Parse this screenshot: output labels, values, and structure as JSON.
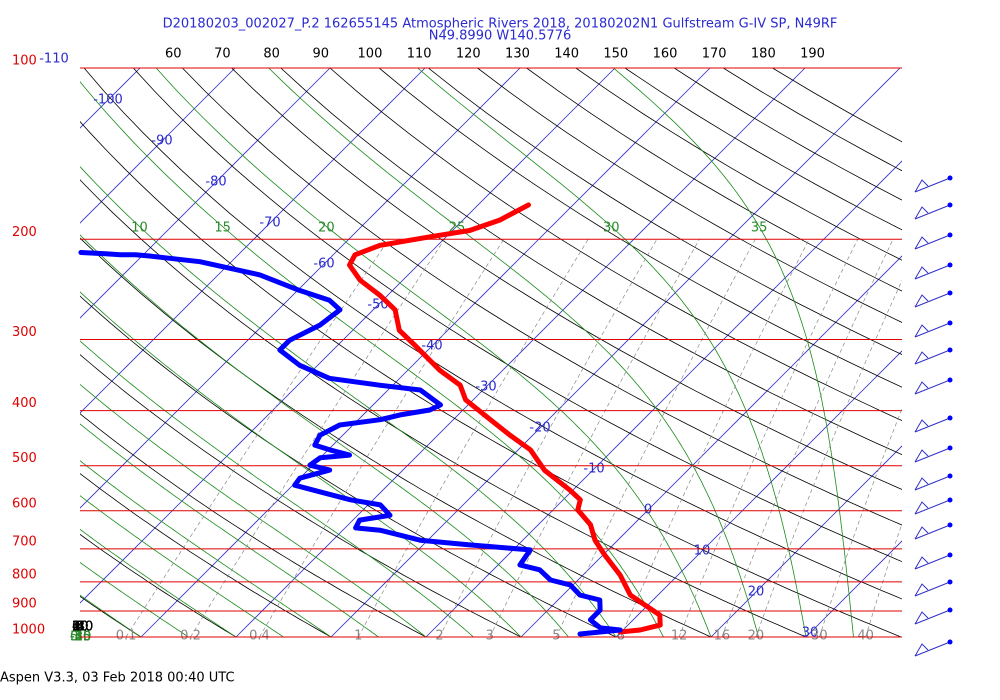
{
  "chart_data": {
    "type": "skewt",
    "title": "D20180203_002027_P.2 162655145 Atmospheric Rivers 2018, 20180202N1 Gulfstream G-IV SP, N49RF",
    "subtitle": "N49.8990 W140.5776",
    "footer": "Aspen V3.3, 03 Feb 2018  00:40 UTC",
    "log_y": true,
    "ylim": [
      100,
      1000
    ],
    "yticks": [
      100,
      200,
      300,
      400,
      500,
      600,
      700,
      800,
      900,
      1000
    ],
    "xticks": [
      -110,
      -100,
      -90,
      -80,
      -70,
      -60,
      -50,
      -40,
      -30,
      -20,
      -10,
      0,
      10,
      20,
      30
    ],
    "theta_ticks": [
      -40,
      -30,
      -20,
      -10,
      0,
      10,
      20,
      30,
      40,
      50,
      60,
      70,
      80,
      90,
      100,
      110,
      120,
      130,
      140,
      150,
      160,
      170,
      180,
      190
    ],
    "moist_ticks": [
      -40,
      -35,
      -30,
      -25,
      -20,
      -15,
      -10,
      -5,
      0,
      5,
      10,
      15,
      20,
      25,
      30,
      35
    ],
    "mixing_ticks": [
      0.1,
      0.2,
      0.4,
      1,
      2,
      3,
      5,
      8,
      12,
      16,
      20,
      30,
      40
    ],
    "series": [
      {
        "name": "Temperature",
        "color": "#ff0000",
        "pressure": [
          174,
          185,
          193,
          198,
          205,
          213,
          222,
          236,
          251,
          266,
          289,
          307,
          340,
          361,
          383,
          415,
          442,
          469,
          509,
          552,
          574,
          598,
          635,
          676,
          718,
          778,
          844,
          879,
          915,
          953,
          972,
          980
        ],
        "values": [
          -44.7,
          -46.1,
          -48.2,
          -51.7,
          -56.1,
          -57.7,
          -57.2,
          -54.5,
          -50.8,
          -47.7,
          -45.1,
          -41.9,
          -36.6,
          -32.9,
          -30.8,
          -26.1,
          -22.4,
          -18.7,
          -15.1,
          -10.3,
          -8.2,
          -7.4,
          -4.5,
          -2.4,
          0.2,
          3.9,
          7.1,
          9.7,
          12.3,
          13.4,
          11.8,
          9.9
        ]
      },
      {
        "name": "Dewpoint",
        "color": "#0000ff",
        "pressure": [
          211,
          212,
          213,
          213,
          214,
          215,
          219,
          231,
          246,
          256,
          266,
          283,
          301,
          313,
          333,
          351,
          361,
          368,
          391,
          399,
          407,
          415,
          424,
          442,
          460,
          469,
          479,
          484,
          499,
          509,
          526,
          541,
          556,
          574,
          586,
          611,
          623,
          643,
          649,
          676,
          689,
          703,
          747,
          762,
          794,
          810,
          844,
          861,
          897,
          933,
          964,
          972,
          988
        ],
        "values": [
          -86.8,
          -84.1,
          -82.4,
          -80.8,
          -79.2,
          -78.0,
          -73.3,
          -65.6,
          -59.8,
          -55.6,
          -53.5,
          -54.0,
          -55.6,
          -55.6,
          -51.9,
          -47.4,
          -41.4,
          -36.6,
          -32.9,
          -33.5,
          -36.1,
          -37.7,
          -41.4,
          -42.4,
          -41.9,
          -39.8,
          -37.2,
          -40.0,
          -40.3,
          -37.7,
          -40.0,
          -39.8,
          -36.4,
          -32.4,
          -28.7,
          -26.6,
          -29.3,
          -28.9,
          -26.1,
          -20.8,
          -15.1,
          -8.2,
          -7.7,
          -5.1,
          -2.9,
          -0.3,
          1.8,
          4.4,
          5.5,
          5.5,
          7.4,
          9.7,
          5.9
        ]
      }
    ]
  }
}
